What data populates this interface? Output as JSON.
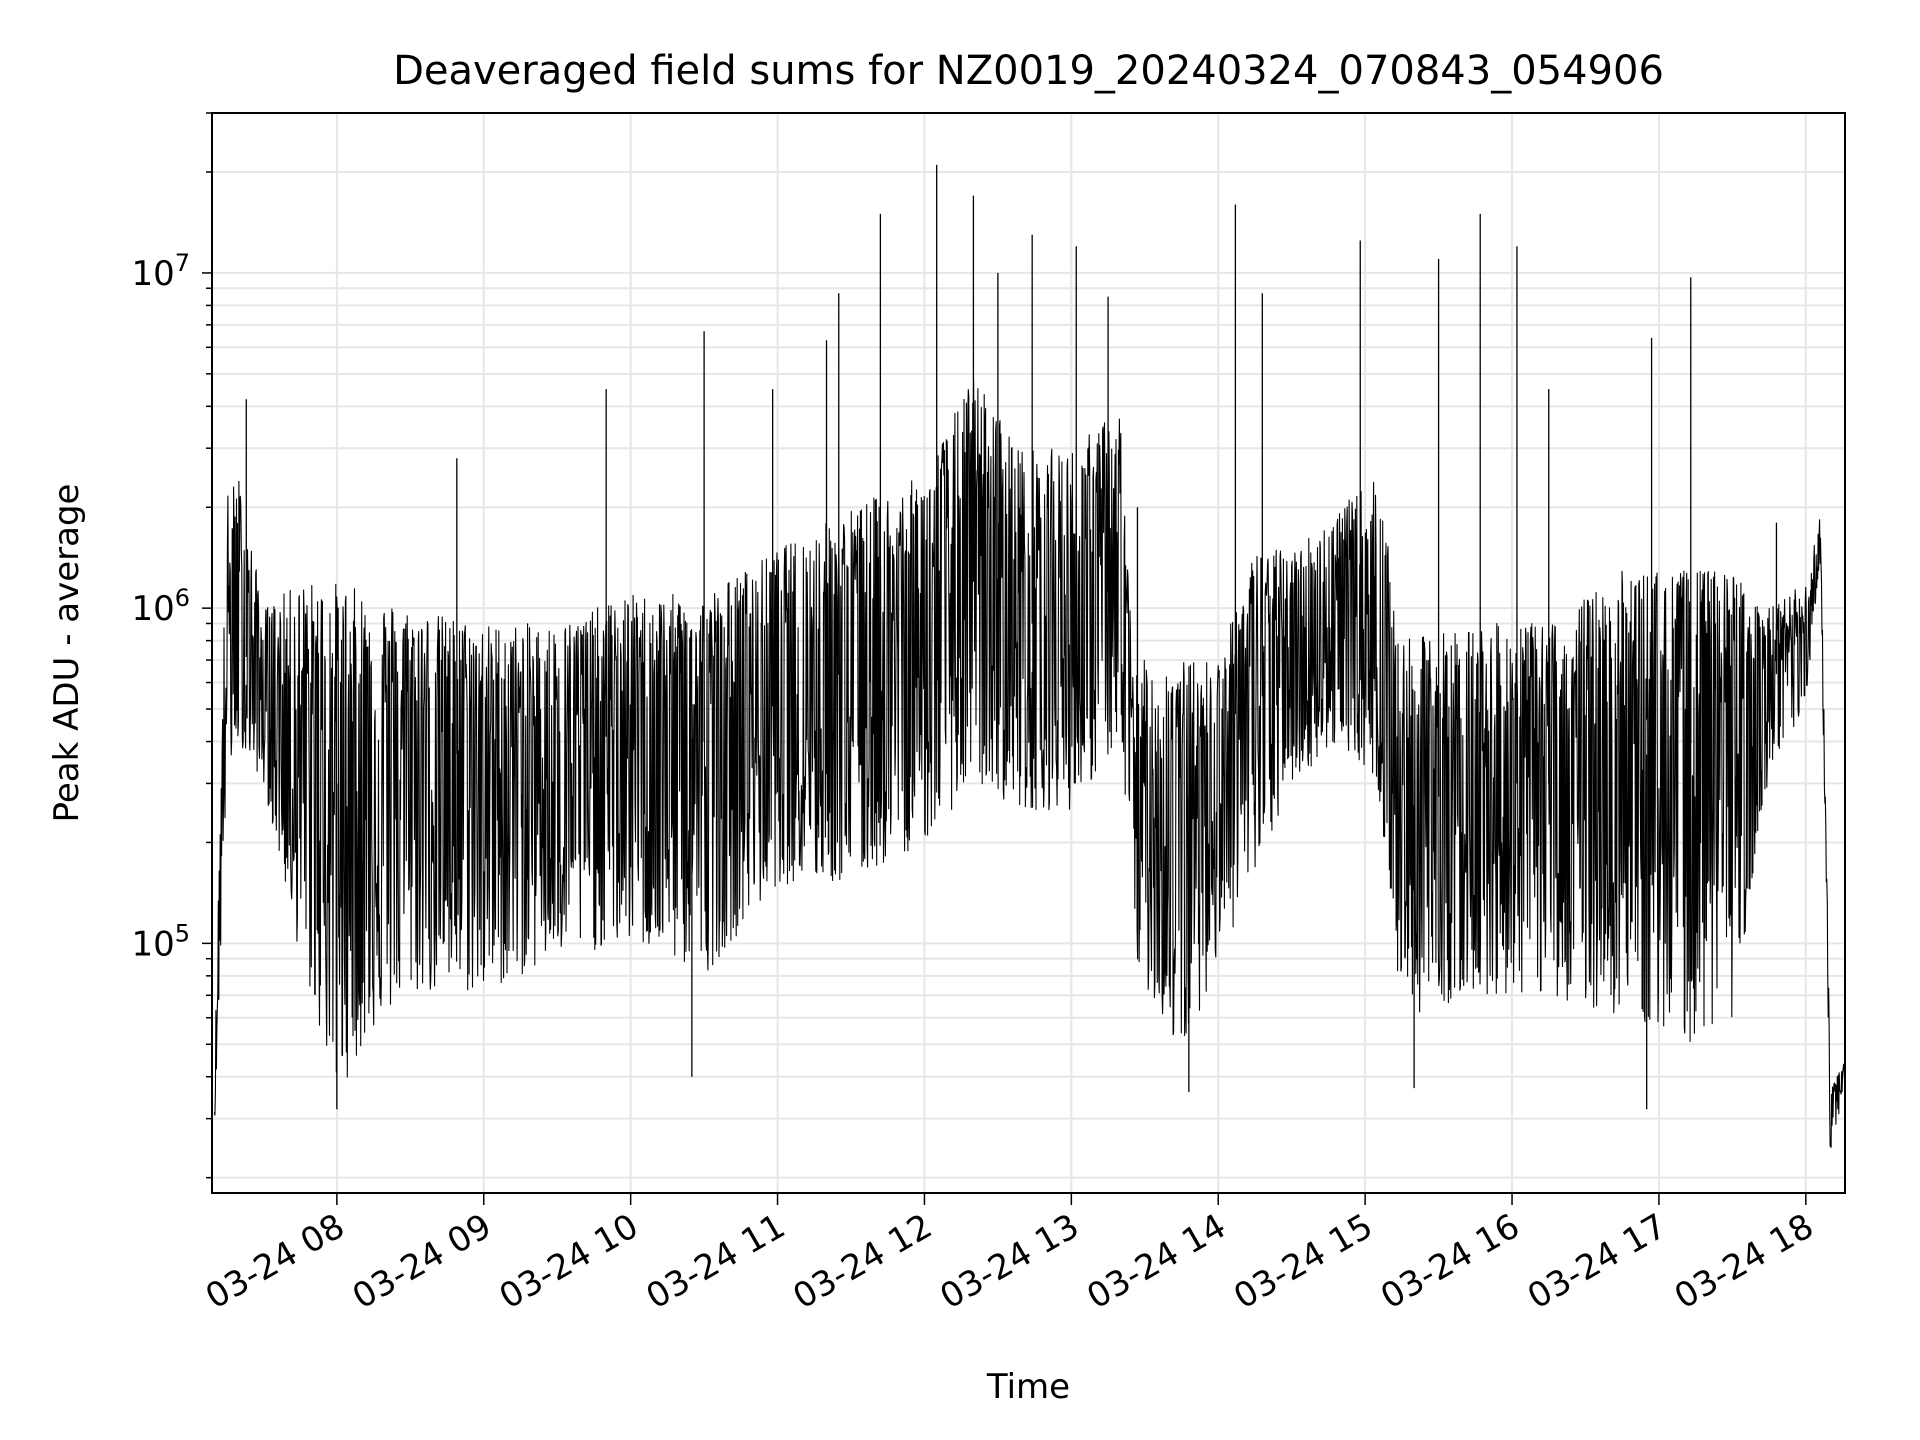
{
  "chart_data": {
    "type": "line",
    "title": "Deaveraged field sums for NZ0019_20240324_070843_054906",
    "xlabel": "Time",
    "ylabel": "Peak ADU - average",
    "yscale": "log",
    "ylim": [
      18000,
      30000000
    ],
    "xlim": [
      "03-24 07:09",
      "03-24 18:16"
    ],
    "grid": true,
    "legend": "none",
    "colors": {
      "line": "#000000",
      "grid": "#e6e6e6",
      "axes": "#000000",
      "background": "#ffffff"
    },
    "x_ticks": [
      {
        "t": "03-24 08:00",
        "label": "03-24 08"
      },
      {
        "t": "03-24 09:00",
        "label": "03-24 09"
      },
      {
        "t": "03-24 10:00",
        "label": "03-24 10"
      },
      {
        "t": "03-24 11:00",
        "label": "03-24 11"
      },
      {
        "t": "03-24 12:00",
        "label": "03-24 12"
      },
      {
        "t": "03-24 13:00",
        "label": "03-24 13"
      },
      {
        "t": "03-24 14:00",
        "label": "03-24 14"
      },
      {
        "t": "03-24 15:00",
        "label": "03-24 15"
      },
      {
        "t": "03-24 16:00",
        "label": "03-24 16"
      },
      {
        "t": "03-24 17:00",
        "label": "03-24 17"
      },
      {
        "t": "03-24 18:00",
        "label": "03-24 18"
      }
    ],
    "y_ticks": [
      {
        "value": 100000,
        "base": "10",
        "exp": "5"
      },
      {
        "value": 1000000,
        "base": "10",
        "exp": "6"
      },
      {
        "value": 10000000,
        "base": "10",
        "exp": "7"
      }
    ],
    "envelope": [
      {
        "t": "03-24 07:10",
        "low": 28000,
        "high": 40000,
        "mid": 35000
      },
      {
        "t": "03-24 07:15",
        "low": 300000,
        "high": 2200000,
        "mid": 900000
      },
      {
        "t": "03-24 07:20",
        "low": 400000,
        "high": 2500000,
        "mid": 800000
      },
      {
        "t": "03-24 07:30",
        "low": 300000,
        "high": 1000000,
        "mid": 550000
      },
      {
        "t": "03-24 07:45",
        "low": 90000,
        "high": 1200000,
        "mid": 400000
      },
      {
        "t": "03-24 08:00",
        "low": 35000,
        "high": 1200000,
        "mid": 300000
      },
      {
        "t": "03-24 08:15",
        "low": 55000,
        "high": 1100000,
        "mid": 350000
      },
      {
        "t": "03-24 08:30",
        "low": 70000,
        "high": 1000000,
        "mid": 400000
      },
      {
        "t": "03-24 09:00",
        "low": 70000,
        "high": 900000,
        "mid": 350000
      },
      {
        "t": "03-24 09:30",
        "low": 90000,
        "high": 900000,
        "mid": 350000
      },
      {
        "t": "03-24 10:00",
        "low": 100000,
        "high": 1100000,
        "mid": 450000
      },
      {
        "t": "03-24 10:30",
        "low": 80000,
        "high": 1100000,
        "mid": 400000
      },
      {
        "t": "03-24 11:00",
        "low": 150000,
        "high": 1500000,
        "mid": 550000
      },
      {
        "t": "03-24 11:30",
        "low": 150000,
        "high": 2000000,
        "mid": 650000
      },
      {
        "t": "03-24 12:00",
        "low": 200000,
        "high": 2500000,
        "mid": 800000
      },
      {
        "t": "03-24 12:20",
        "low": 300000,
        "high": 5000000,
        "mid": 1200000
      },
      {
        "t": "03-24 12:40",
        "low": 250000,
        "high": 3000000,
        "mid": 900000
      },
      {
        "t": "03-24 13:00",
        "low": 250000,
        "high": 3000000,
        "mid": 900000
      },
      {
        "t": "03-24 13:20",
        "low": 400000,
        "high": 4000000,
        "mid": 1200000
      },
      {
        "t": "03-24 13:25",
        "low": 90000,
        "high": 700000,
        "mid": 300000
      },
      {
        "t": "03-24 13:45",
        "low": 45000,
        "high": 700000,
        "mid": 250000
      },
      {
        "t": "03-24 14:00",
        "low": 90000,
        "high": 700000,
        "mid": 400000
      },
      {
        "t": "03-24 14:15",
        "low": 150000,
        "high": 1500000,
        "mid": 600000
      },
      {
        "t": "03-24 14:30",
        "low": 300000,
        "high": 1500000,
        "mid": 700000
      },
      {
        "t": "03-24 14:50",
        "low": 400000,
        "high": 2000000,
        "mid": 900000
      },
      {
        "t": "03-24 15:05",
        "low": 300000,
        "high": 2500000,
        "mid": 800000
      },
      {
        "t": "03-24 15:15",
        "low": 60000,
        "high": 800000,
        "mid": 250000
      },
      {
        "t": "03-24 15:45",
        "low": 70000,
        "high": 900000,
        "mid": 300000
      },
      {
        "t": "03-24 16:15",
        "low": 70000,
        "high": 900000,
        "mid": 300000
      },
      {
        "t": "03-24 16:45",
        "low": 60000,
        "high": 1300000,
        "mid": 350000
      },
      {
        "t": "03-24 17:15",
        "low": 50000,
        "high": 1300000,
        "mid": 400000
      },
      {
        "t": "03-24 17:30",
        "low": 60000,
        "high": 1300000,
        "mid": 400000
      },
      {
        "t": "03-24 17:45",
        "low": 300000,
        "high": 1000000,
        "mid": 600000
      },
      {
        "t": "03-24 18:00",
        "low": 500000,
        "high": 1200000,
        "mid": 800000
      },
      {
        "t": "03-24 18:06",
        "low": 1400000,
        "high": 1900000,
        "mid": 1700000
      },
      {
        "t": "03-24 18:10",
        "low": 23000,
        "high": 40000,
        "mid": 30000
      },
      {
        "t": "03-24 18:16",
        "low": 38000,
        "high": 45000,
        "mid": 42000
      }
    ],
    "spikes": [
      {
        "t": "03-24 07:23",
        "value": 4200000
      },
      {
        "t": "03-24 08:49",
        "value": 2800000
      },
      {
        "t": "03-24 09:50",
        "value": 4500000
      },
      {
        "t": "03-24 10:30",
        "value": 6700000
      },
      {
        "t": "03-24 10:58",
        "value": 4500000
      },
      {
        "t": "03-24 11:20",
        "value": 6300000
      },
      {
        "t": "03-24 11:25",
        "value": 8700000
      },
      {
        "t": "03-24 11:42",
        "value": 15000000
      },
      {
        "t": "03-24 12:05",
        "value": 21000000
      },
      {
        "t": "03-24 12:20",
        "value": 17000000
      },
      {
        "t": "03-24 12:30",
        "value": 10000000
      },
      {
        "t": "03-24 12:44",
        "value": 13000000
      },
      {
        "t": "03-24 13:02",
        "value": 12000000
      },
      {
        "t": "03-24 13:15",
        "value": 8500000
      },
      {
        "t": "03-24 13:27",
        "value": 2000000
      },
      {
        "t": "03-24 14:07",
        "value": 16000000
      },
      {
        "t": "03-24 14:18",
        "value": 8700000
      },
      {
        "t": "03-24 14:58",
        "value": 12500000
      },
      {
        "t": "03-24 15:30",
        "value": 11000000
      },
      {
        "t": "03-24 15:47",
        "value": 15000000
      },
      {
        "t": "03-24 16:02",
        "value": 12000000
      },
      {
        "t": "03-24 16:15",
        "value": 4500000
      },
      {
        "t": "03-24 16:57",
        "value": 6400000
      },
      {
        "t": "03-24 17:13",
        "value": 9700000
      },
      {
        "t": "03-24 17:48",
        "value": 1800000
      },
      {
        "t": "03-24 08:00",
        "value": 32000
      },
      {
        "t": "03-24 10:25",
        "value": 40000
      },
      {
        "t": "03-24 13:48",
        "value": 36000
      },
      {
        "t": "03-24 15:20",
        "value": 37000
      },
      {
        "t": "03-24 16:55",
        "value": 32000
      }
    ]
  }
}
